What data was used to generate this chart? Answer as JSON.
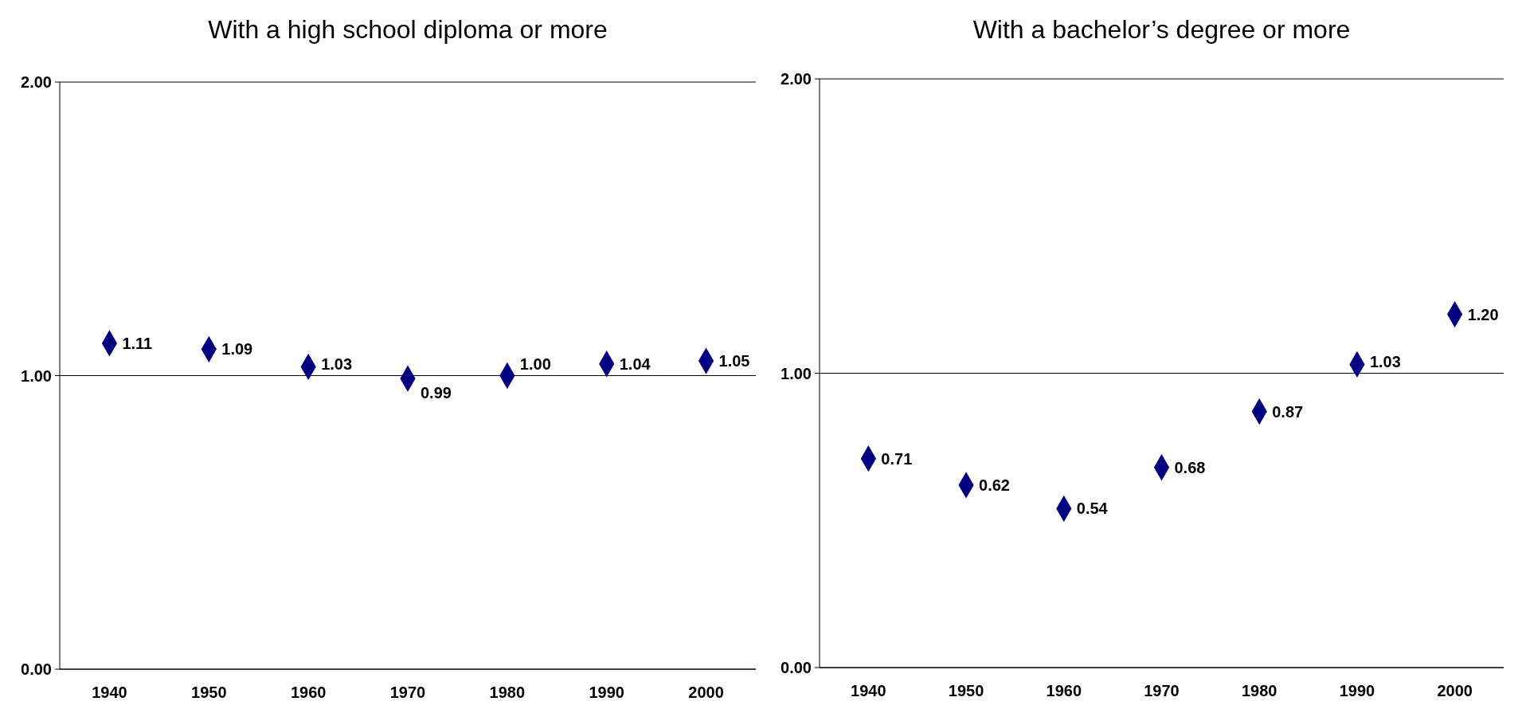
{
  "chart_data": [
    {
      "type": "scatter",
      "title": "With a high school diploma or more",
      "categories": [
        "1940",
        "1950",
        "1960",
        "1970",
        "1980",
        "1990",
        "2000"
      ],
      "series": [
        {
          "color": "#000080",
          "values": [
            1.11,
            1.09,
            1.03,
            0.99,
            1.0,
            1.04,
            1.05
          ],
          "value_labels": [
            "1.11",
            "1.09",
            "1.03",
            "0.99",
            "1.00",
            "1.04",
            "1.05"
          ]
        }
      ],
      "ylim": [
        0,
        2
      ],
      "yticks": [
        {
          "value": 0,
          "label": "0.00"
        },
        {
          "value": 1,
          "label": "1.00"
        },
        {
          "value": 2,
          "label": "2.00"
        }
      ],
      "grid": "y",
      "marker": "diamond"
    },
    {
      "type": "scatter",
      "title": "With a bachelor’s degree or more",
      "categories": [
        "1940",
        "1950",
        "1960",
        "1970",
        "1980",
        "1990",
        "2000"
      ],
      "series": [
        {
          "color": "#000080",
          "values": [
            0.71,
            0.62,
            0.54,
            0.68,
            0.87,
            1.03,
            1.2
          ],
          "value_labels": [
            "0.71",
            "0.62",
            "0.54",
            "0.68",
            "0.87",
            "1.03",
            "1.20"
          ]
        }
      ],
      "ylim": [
        0,
        2
      ],
      "yticks": [
        {
          "value": 0,
          "label": "0.00"
        },
        {
          "value": 1,
          "label": "1.00"
        },
        {
          "value": 2,
          "label": "2.00"
        }
      ],
      "grid": "y",
      "marker": "diamond"
    }
  ]
}
